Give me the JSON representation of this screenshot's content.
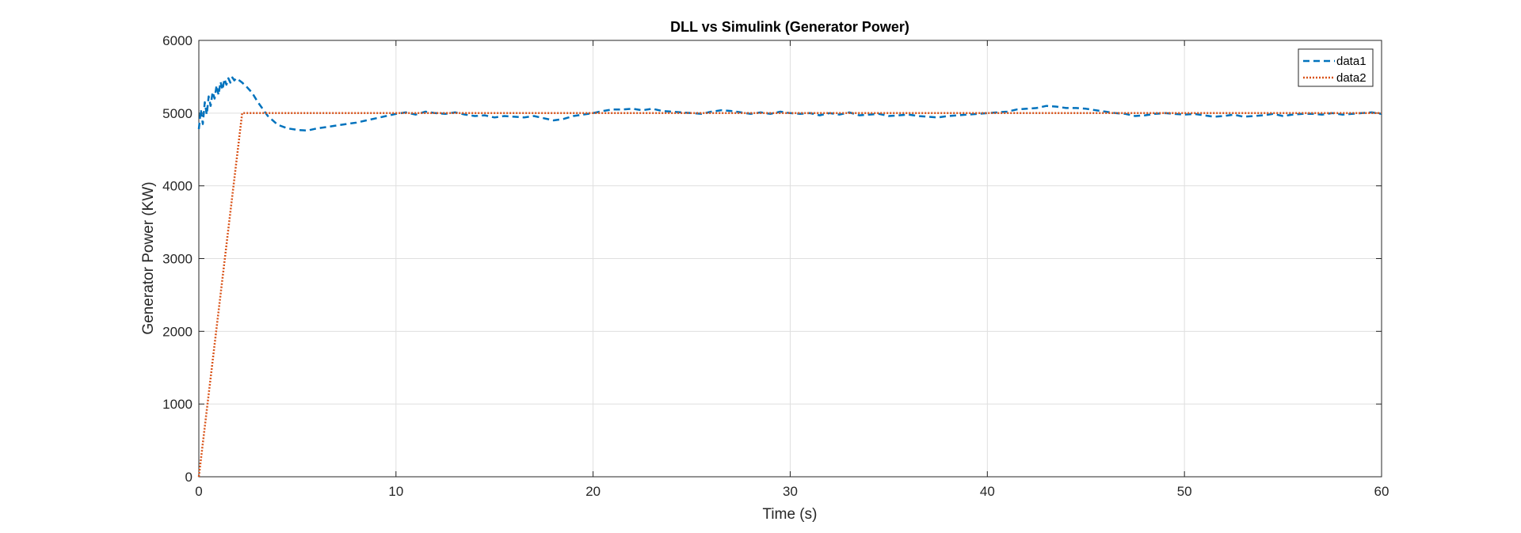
{
  "chart_data": {
    "type": "line",
    "title": "DLL vs Simulink (Generator Power)",
    "xlabel": "Time (s)",
    "ylabel": "Generator Power (KW)",
    "xlim": [
      0,
      60
    ],
    "ylim": [
      0,
      6000
    ],
    "xticks": [
      0,
      10,
      20,
      30,
      40,
      50,
      60
    ],
    "yticks": [
      0,
      1000,
      2000,
      3000,
      4000,
      5000,
      6000
    ],
    "grid": true,
    "legend_position": "top-right",
    "series": [
      {
        "name": "data1",
        "color": "#0072bd",
        "style": "dashed",
        "x": [
          0,
          0.1,
          0.2,
          0.3,
          0.4,
          0.5,
          0.6,
          0.7,
          0.8,
          0.9,
          1.0,
          1.1,
          1.2,
          1.3,
          1.4,
          1.5,
          1.6,
          1.7,
          1.8,
          1.9,
          2.0,
          2.2,
          2.4,
          2.7,
          3.0,
          3.5,
          4.0,
          4.5,
          5.0,
          5.5,
          6.0,
          6.5,
          7.0,
          7.5,
          8.0,
          8.5,
          9.0,
          9.5,
          10.0,
          10.5,
          11.0,
          11.5,
          12.0,
          12.5,
          13.0,
          13.5,
          14.0,
          14.5,
          15.0,
          15.5,
          16.0,
          16.5,
          17.0,
          17.5,
          18.0,
          18.5,
          19.0,
          19.5,
          20.0,
          20.5,
          21.0,
          21.5,
          22.0,
          22.5,
          23.0,
          23.5,
          24.0,
          24.5,
          25.0,
          25.5,
          26.0,
          26.5,
          27.0,
          27.5,
          28.0,
          28.5,
          29.0,
          29.5,
          30.0,
          30.5,
          31.0,
          31.5,
          32.0,
          32.5,
          33.0,
          33.5,
          34.0,
          34.5,
          35.0,
          35.5,
          36.0,
          36.5,
          37.0,
          37.5,
          38.0,
          38.5,
          39.0,
          39.5,
          40.0,
          40.5,
          41.0,
          41.5,
          42.0,
          42.5,
          43.0,
          43.5,
          44.0,
          44.5,
          45.0,
          45.5,
          46.0,
          46.5,
          47.0,
          47.5,
          48.0,
          48.5,
          49.0,
          49.5,
          50.0,
          50.5,
          51.0,
          51.5,
          52.0,
          52.5,
          53.0,
          53.5,
          54.0,
          54.5,
          55.0,
          55.5,
          56.0,
          56.5,
          57.0,
          57.5,
          58.0,
          58.5,
          59.0,
          59.5,
          60.0
        ],
        "y": [
          4780,
          5050,
          4850,
          5150,
          4980,
          5230,
          5100,
          5290,
          5200,
          5380,
          5250,
          5430,
          5320,
          5470,
          5390,
          5480,
          5420,
          5490,
          5450,
          5480,
          5460,
          5420,
          5370,
          5280,
          5150,
          4960,
          4840,
          4790,
          4770,
          4760,
          4790,
          4810,
          4830,
          4850,
          4870,
          4900,
          4930,
          4960,
          4990,
          5010,
          4980,
          5020,
          5000,
          4990,
          5010,
          4980,
          4960,
          4970,
          4940,
          4960,
          4950,
          4940,
          4960,
          4930,
          4900,
          4920,
          4960,
          4980,
          5000,
          5030,
          5050,
          5050,
          5060,
          5040,
          5060,
          5030,
          5020,
          5010,
          5000,
          4990,
          5020,
          5040,
          5030,
          5010,
          4990,
          5010,
          4990,
          5020,
          5000,
          4990,
          5000,
          4970,
          5000,
          4980,
          5010,
          4970,
          4980,
          4990,
          4960,
          4970,
          4980,
          4960,
          4950,
          4940,
          4960,
          4970,
          4980,
          4990,
          5000,
          5010,
          5020,
          5050,
          5060,
          5070,
          5100,
          5090,
          5070,
          5070,
          5060,
          5040,
          5020,
          5000,
          4990,
          4960,
          4970,
          4990,
          5000,
          4990,
          4980,
          4990,
          4970,
          4950,
          4960,
          4980,
          4950,
          4960,
          4970,
          4990,
          4960,
          4980,
          4990,
          4990,
          4980,
          5000,
          4980,
          4990,
          5000,
          5010,
          4990
        ]
      },
      {
        "name": "data2",
        "color": "#d95319",
        "style": "dotted",
        "x": [
          0,
          2.2,
          60
        ],
        "y": [
          0,
          5000,
          5000
        ]
      }
    ]
  }
}
